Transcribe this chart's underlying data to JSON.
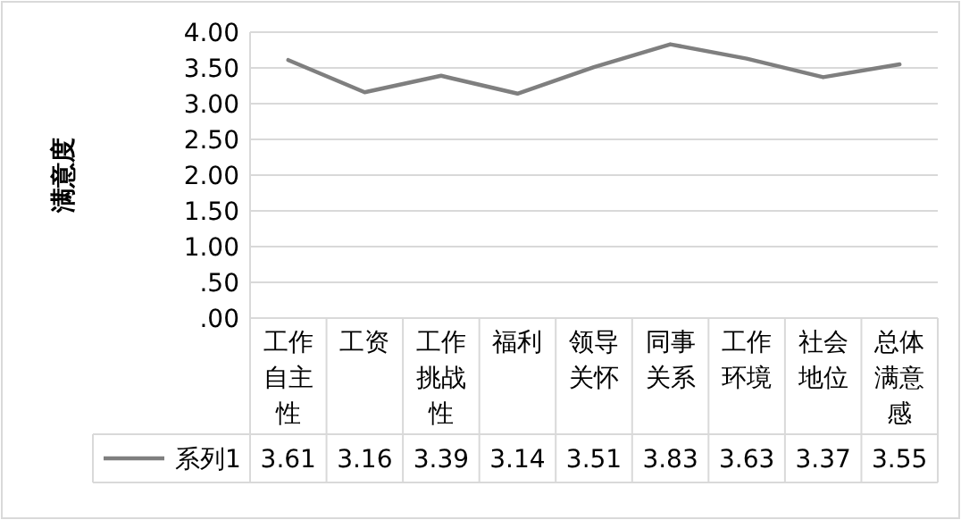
{
  "chart_data": {
    "type": "line",
    "ylabel": "满意度",
    "categories": [
      "工作自主性",
      "工资",
      "工作挑战性",
      "福利",
      "领导关怀",
      "同事关系",
      "工作环境",
      "社会地位",
      "总体满意感"
    ],
    "series": [
      {
        "name": "系列1",
        "color": "#7f7f7f",
        "values": [
          3.61,
          3.16,
          3.39,
          3.14,
          3.51,
          3.83,
          3.63,
          3.37,
          3.55
        ]
      }
    ],
    "ylim": [
      0,
      4
    ],
    "yticks": [
      {
        "value": 0,
        "label": ".00"
      },
      {
        "value": 0.5,
        "label": ".50"
      },
      {
        "value": 1,
        "label": "1.00"
      },
      {
        "value": 1.5,
        "label": "1.50"
      },
      {
        "value": 2,
        "label": "2.00"
      },
      {
        "value": 2.5,
        "label": "2.50"
      },
      {
        "value": 3,
        "label": "3.00"
      },
      {
        "value": 3.5,
        "label": "3.50"
      },
      {
        "value": 4,
        "label": "4.00"
      }
    ],
    "grid": "y",
    "legend": "bottom",
    "data_labels": true,
    "marker": "none",
    "line_style": "solid"
  }
}
